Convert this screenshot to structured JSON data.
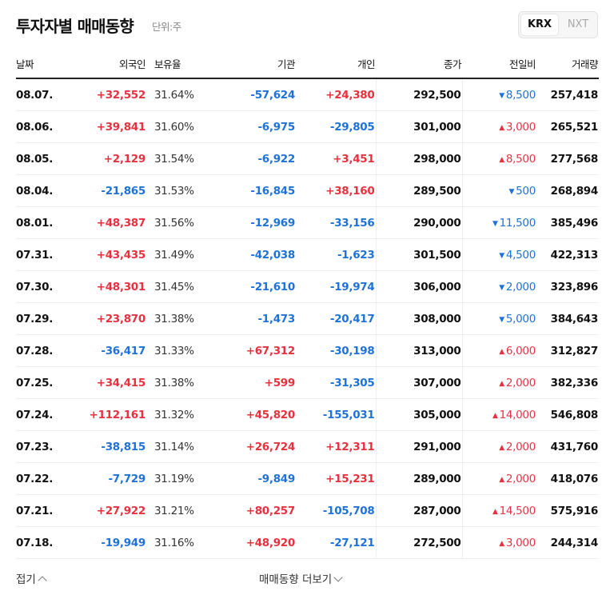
{
  "header": {
    "title": "투자자별 매매동향",
    "unit": "단위:주"
  },
  "market_toggle": {
    "options": [
      "KRX",
      "NXT"
    ],
    "selected": "KRX"
  },
  "columns": [
    "날짜",
    "외국인",
    "보유율",
    "기관",
    "개인",
    "종가",
    "전일비",
    "거래량"
  ],
  "colors": {
    "up": "#e8313f",
    "down": "#1f72d8"
  },
  "rows": [
    {
      "date": "08.07.",
      "foreign": "+32,552",
      "holding": "31.64%",
      "institution": "-57,624",
      "individual": "+24,380",
      "close": "292,500",
      "change": "8,500",
      "dir": "down",
      "volume": "257,418"
    },
    {
      "date": "08.06.",
      "foreign": "+39,841",
      "holding": "31.60%",
      "institution": "-6,975",
      "individual": "-29,805",
      "close": "301,000",
      "change": "3,000",
      "dir": "up",
      "volume": "265,521"
    },
    {
      "date": "08.05.",
      "foreign": "+2,129",
      "holding": "31.54%",
      "institution": "-6,922",
      "individual": "+3,451",
      "close": "298,000",
      "change": "8,500",
      "dir": "up",
      "volume": "277,568"
    },
    {
      "date": "08.04.",
      "foreign": "-21,865",
      "holding": "31.53%",
      "institution": "-16,845",
      "individual": "+38,160",
      "close": "289,500",
      "change": "500",
      "dir": "down",
      "volume": "268,894"
    },
    {
      "date": "08.01.",
      "foreign": "+48,387",
      "holding": "31.56%",
      "institution": "-12,969",
      "individual": "-33,156",
      "close": "290,000",
      "change": "11,500",
      "dir": "down",
      "volume": "385,496"
    },
    {
      "date": "07.31.",
      "foreign": "+43,435",
      "holding": "31.49%",
      "institution": "-42,038",
      "individual": "-1,623",
      "close": "301,500",
      "change": "4,500",
      "dir": "down",
      "volume": "422,313"
    },
    {
      "date": "07.30.",
      "foreign": "+48,301",
      "holding": "31.45%",
      "institution": "-21,610",
      "individual": "-19,974",
      "close": "306,000",
      "change": "2,000",
      "dir": "down",
      "volume": "323,896"
    },
    {
      "date": "07.29.",
      "foreign": "+23,870",
      "holding": "31.38%",
      "institution": "-1,473",
      "individual": "-20,417",
      "close": "308,000",
      "change": "5,000",
      "dir": "down",
      "volume": "384,643"
    },
    {
      "date": "07.28.",
      "foreign": "-36,417",
      "holding": "31.33%",
      "institution": "+67,312",
      "individual": "-30,198",
      "close": "313,000",
      "change": "6,000",
      "dir": "up",
      "volume": "312,827"
    },
    {
      "date": "07.25.",
      "foreign": "+34,415",
      "holding": "31.38%",
      "institution": "+599",
      "individual": "-31,305",
      "close": "307,000",
      "change": "2,000",
      "dir": "up",
      "volume": "382,336"
    },
    {
      "date": "07.24.",
      "foreign": "+112,161",
      "holding": "31.32%",
      "institution": "+45,820",
      "individual": "-155,031",
      "close": "305,000",
      "change": "14,000",
      "dir": "up",
      "volume": "546,808"
    },
    {
      "date": "07.23.",
      "foreign": "-38,815",
      "holding": "31.14%",
      "institution": "+26,724",
      "individual": "+12,311",
      "close": "291,000",
      "change": "2,000",
      "dir": "up",
      "volume": "431,760"
    },
    {
      "date": "07.22.",
      "foreign": "-7,729",
      "holding": "31.19%",
      "institution": "-9,849",
      "individual": "+15,231",
      "close": "289,000",
      "change": "2,000",
      "dir": "up",
      "volume": "418,076"
    },
    {
      "date": "07.21.",
      "foreign": "+27,922",
      "holding": "31.21%",
      "institution": "+80,257",
      "individual": "-105,708",
      "close": "287,000",
      "change": "14,500",
      "dir": "up",
      "volume": "575,916"
    },
    {
      "date": "07.18.",
      "foreign": "-19,949",
      "holding": "31.16%",
      "institution": "+48,920",
      "individual": "-27,121",
      "close": "272,500",
      "change": "3,000",
      "dir": "up",
      "volume": "244,314"
    }
  ],
  "footer": {
    "collapse_label": "접기",
    "more_label": "매매동향 더보기"
  }
}
